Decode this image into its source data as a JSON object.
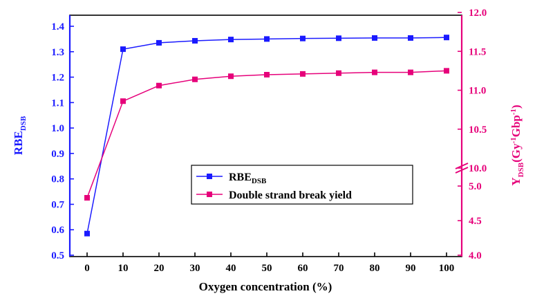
{
  "chart_data": {
    "type": "line",
    "title": "",
    "xlabel": "Oxygen concentration (%)",
    "x": [
      0,
      10,
      20,
      30,
      40,
      50,
      60,
      70,
      80,
      90,
      100
    ],
    "x_ticks": [
      "0",
      "10",
      "20",
      "30",
      "40",
      "50",
      "60",
      "70",
      "80",
      "90",
      "100"
    ],
    "y_left": {
      "label_main": "RBE",
      "label_sub": "DSB",
      "ylim": [
        0.5,
        1.4
      ],
      "ticks": [
        "0.5",
        "0.6",
        "0.7",
        "0.8",
        "0.9",
        "1.0",
        "1.1",
        "1.2",
        "1.3",
        "1.4"
      ],
      "color": "#1a1aff"
    },
    "y_right": {
      "label_main": "Y",
      "label_sub": "DSB",
      "label_rest": "(Gy",
      "label_sup1": "-1",
      "label_mid": "Gbp",
      "label_sup2": "-1",
      "label_end": ")",
      "segments": [
        {
          "ylim": [
            4.0,
            5.0
          ],
          "ticks": [
            "4.0",
            "4.5",
            "5.0"
          ]
        },
        {
          "ylim": [
            10.0,
            12.0
          ],
          "ticks": [
            "10.0",
            "10.5",
            "11.0",
            "11.5",
            "12.0"
          ]
        }
      ],
      "color": "#e6007a"
    },
    "series": [
      {
        "name": "RBE",
        "name_sub": "DSB",
        "axis": "left",
        "color": "#1a1aff",
        "marker": "square",
        "values": [
          0.585,
          1.31,
          1.335,
          1.343,
          1.348,
          1.35,
          1.352,
          1.353,
          1.354,
          1.354,
          1.356
        ]
      },
      {
        "name": "Double strand break yield",
        "axis": "right",
        "color": "#e6007a",
        "marker": "square",
        "values": [
          4.83,
          10.86,
          11.06,
          11.14,
          11.18,
          11.2,
          11.21,
          11.22,
          11.23,
          11.23,
          11.25
        ]
      }
    ],
    "legend_position": "center-right",
    "grid": false
  }
}
